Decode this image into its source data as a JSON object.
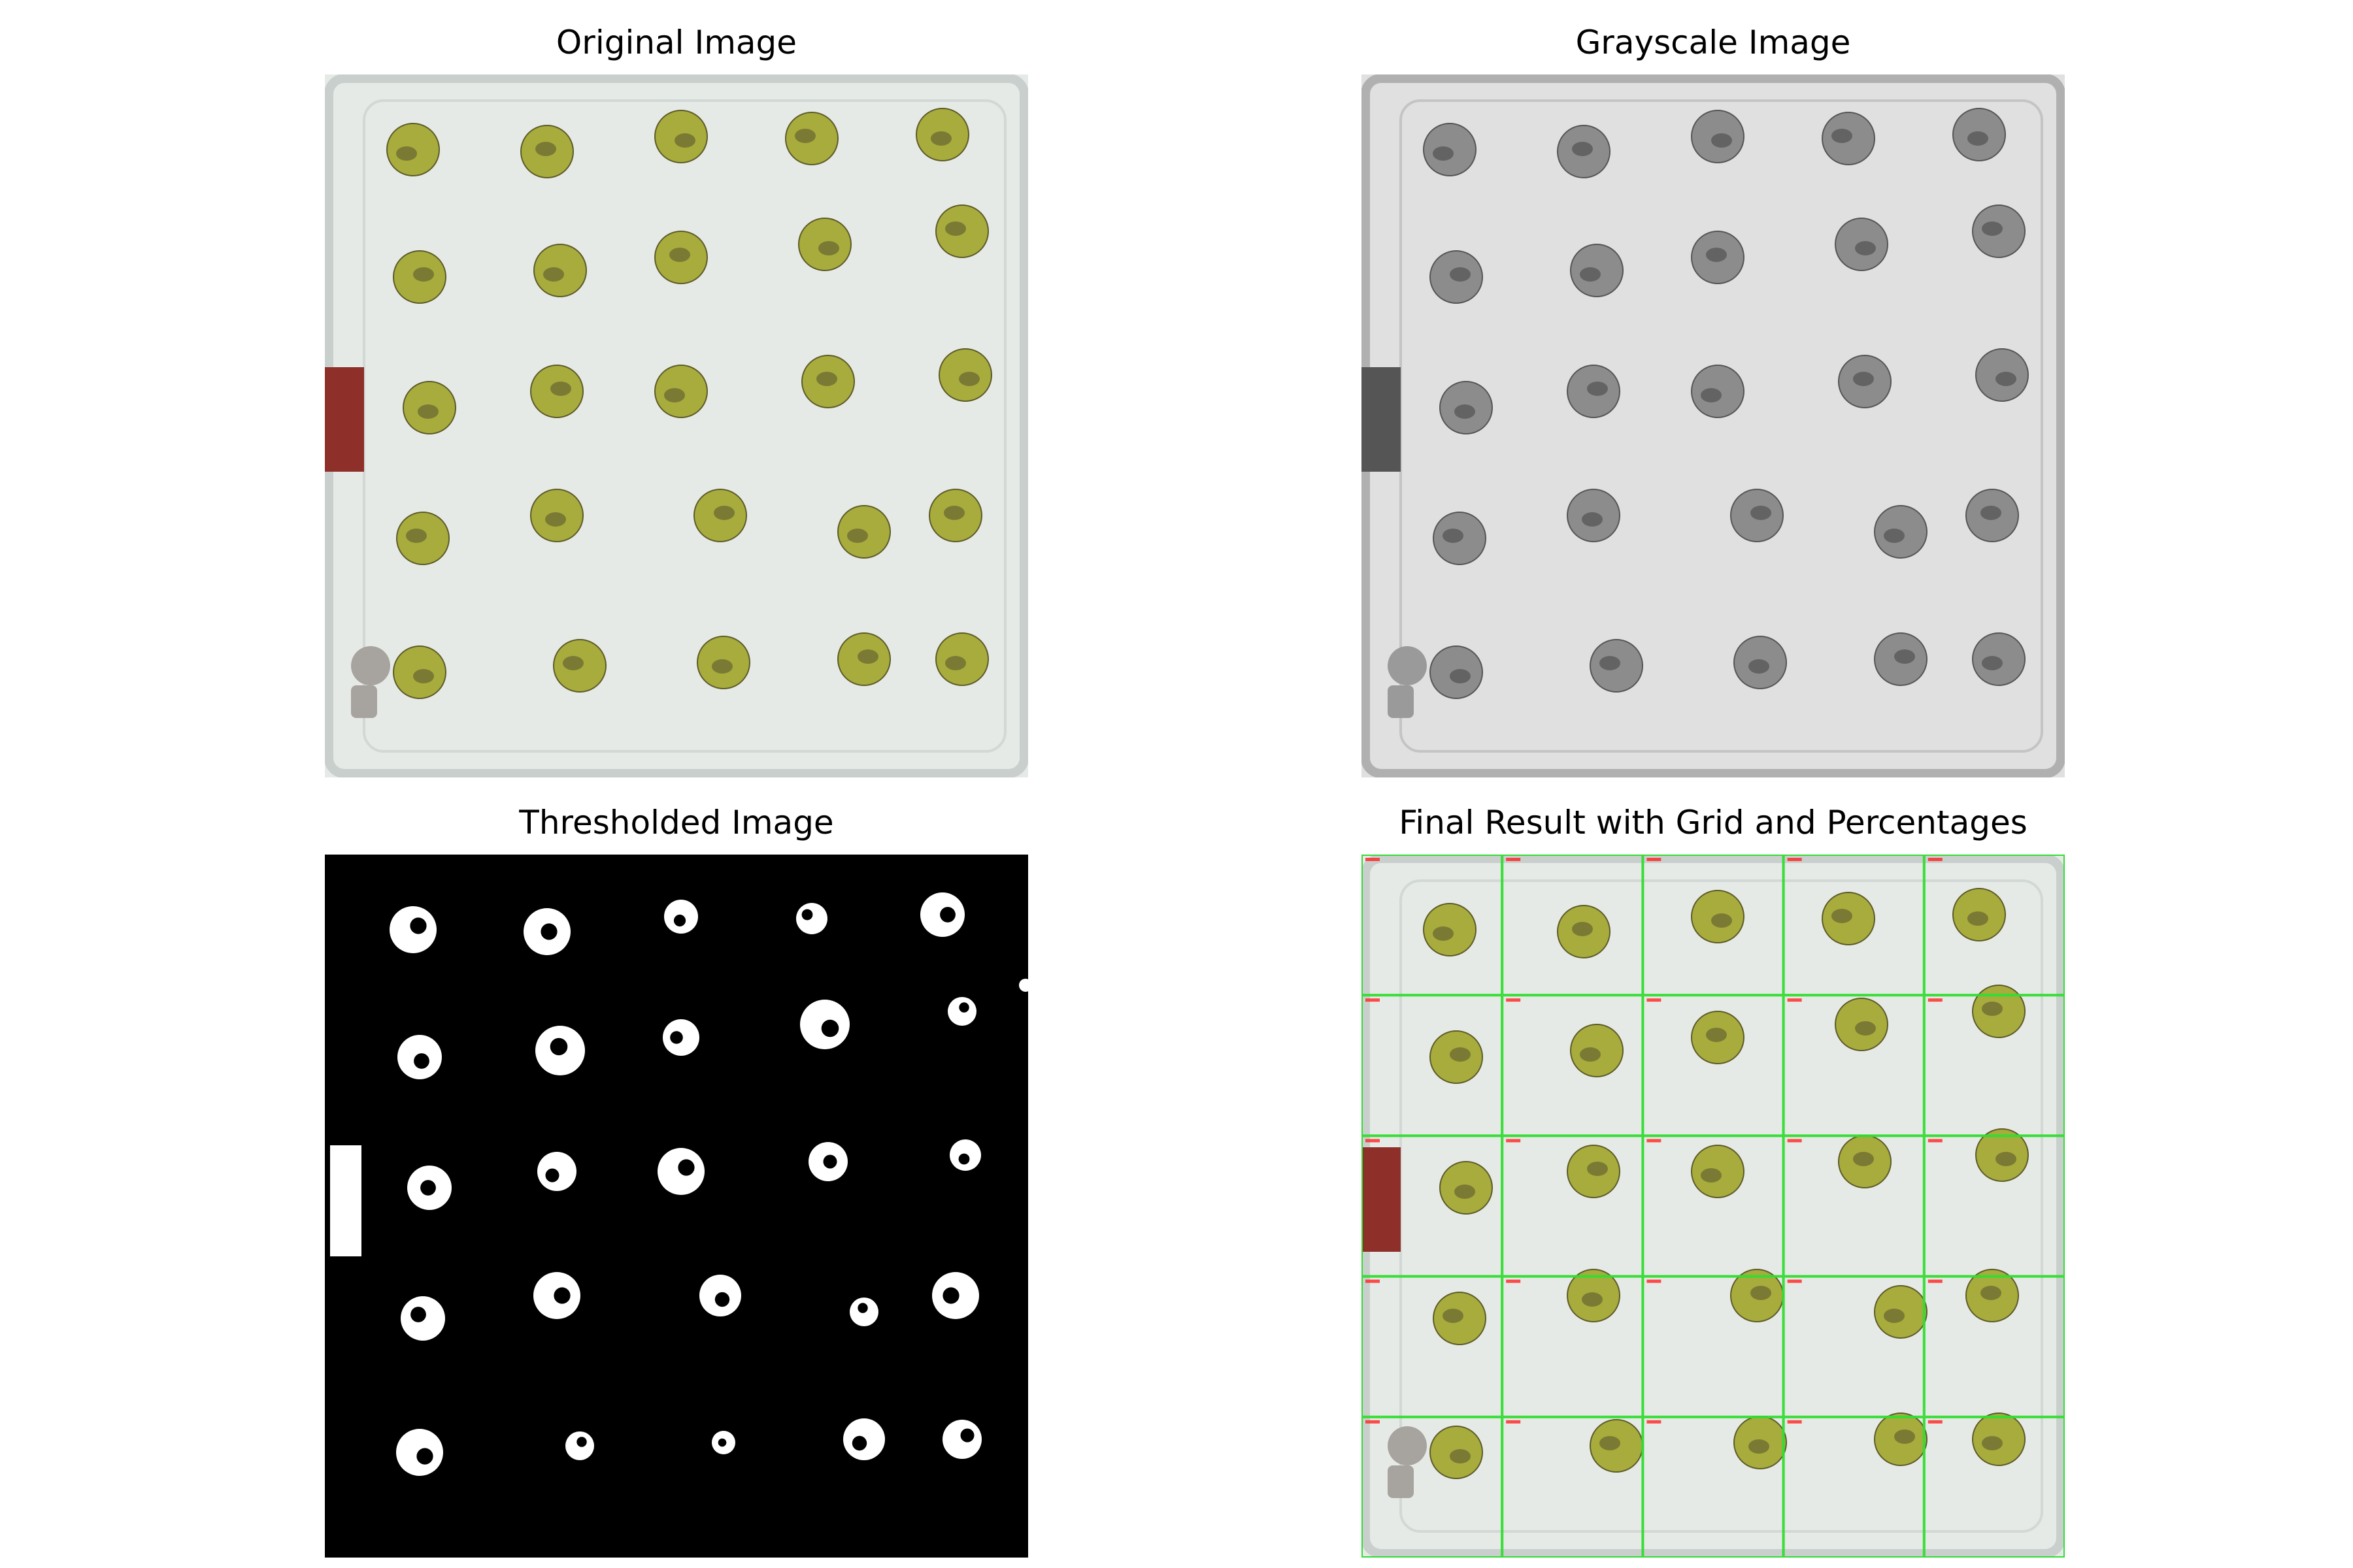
{
  "panels": [
    {
      "id": "original",
      "title": "Original Image"
    },
    {
      "id": "grayscale",
      "title": "Grayscale Image"
    },
    {
      "id": "thresholded",
      "title": "Thresholded Image"
    },
    {
      "id": "final",
      "title": "Final Result with Grid and Percentages"
    }
  ],
  "grid": {
    "rows": 5,
    "cols": 5,
    "line_color": "#33dd33",
    "label_color": "#ff2222"
  },
  "colors": {
    "tray_background": "#e6eae6",
    "tray_edge": "#c9cfcc",
    "leaf_disc": "#a8ac3c",
    "leaf_dark_patch": "#6c6a32",
    "red_tape": "#8e2f2a",
    "gray_background": "#e0e0e0",
    "gray_disc": "#8c8c8c",
    "threshold_foreground": "#ffffff",
    "threshold_background": "#000000"
  }
}
